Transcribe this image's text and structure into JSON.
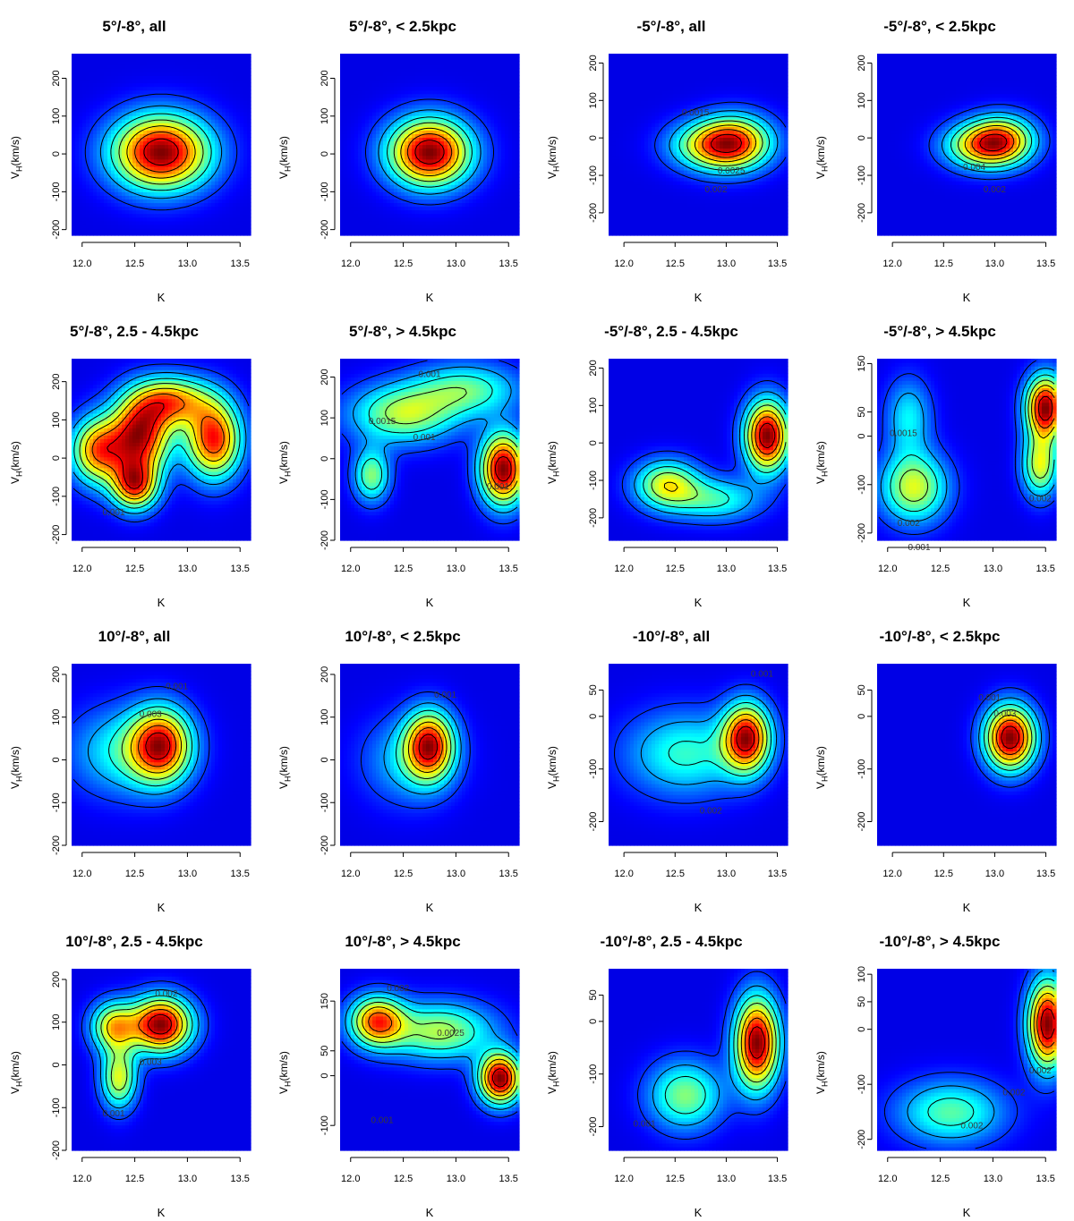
{
  "labels": {
    "xlabel": "K",
    "ylabel_main": "V",
    "ylabel_sub": "H",
    "ylabel_unit": "(km/s)"
  },
  "chart_data": [
    {
      "type": "heatmap",
      "title": "5°/-8°, all",
      "xlabel": "K",
      "ylabel": "VH(km/s)",
      "xlim": [
        11.9,
        13.6
      ],
      "ylim": [
        -215,
        265
      ],
      "xticks": [
        12.0,
        12.5,
        13.0,
        13.5
      ],
      "yticks": [
        -200,
        -100,
        0,
        100,
        200
      ],
      "peaks": [
        {
          "x": 12.75,
          "y": 5,
          "sx": 0.32,
          "sy": 68,
          "w": 1.0
        }
      ],
      "contour_labels": []
    },
    {
      "type": "heatmap",
      "title": "5°/-8°, < 2.5kpc",
      "xlabel": "K",
      "ylabel": "VH(km/s)",
      "xlim": [
        11.9,
        13.6
      ],
      "ylim": [
        -215,
        265
      ],
      "xticks": [
        12.0,
        12.5,
        13.0,
        13.5
      ],
      "yticks": [
        -200,
        -100,
        0,
        100,
        200
      ],
      "peaks": [
        {
          "x": 12.75,
          "y": 5,
          "sx": 0.27,
          "sy": 62,
          "w": 1.0
        }
      ],
      "contour_labels": []
    },
    {
      "type": "heatmap",
      "title": "-5°/-8°, all",
      "xlabel": "K",
      "ylabel": "VH(km/s)",
      "xlim": [
        11.85,
        13.6
      ],
      "ylim": [
        -260,
        225
      ],
      "xticks": [
        12.0,
        12.5,
        13.0,
        13.5
      ],
      "yticks": [
        -200,
        -100,
        0,
        100,
        200
      ],
      "peaks": [
        {
          "x": 12.85,
          "y": -20,
          "sx": 0.28,
          "sy": 45,
          "w": 0.85
        },
        {
          "x": 13.1,
          "y": -10,
          "sx": 0.25,
          "sy": 50,
          "w": 1.0
        }
      ],
      "contour_labels": [
        {
          "text": "0.0015",
          "x": 12.7,
          "y": 60
        },
        {
          "text": "0.0025",
          "x": 13.05,
          "y": -95
        },
        {
          "text": "0.002",
          "x": 12.9,
          "y": -145
        }
      ]
    },
    {
      "type": "heatmap",
      "title": "-5°/-8°, < 2.5kpc",
      "xlabel": "K",
      "ylabel": "VH(km/s)",
      "xlim": [
        11.85,
        13.6
      ],
      "ylim": [
        -260,
        225
      ],
      "xticks": [
        12.0,
        12.5,
        13.0,
        13.5
      ],
      "yticks": [
        -200,
        -100,
        0,
        100,
        200
      ],
      "peaks": [
        {
          "x": 12.85,
          "y": -20,
          "sx": 0.25,
          "sy": 42,
          "w": 0.9
        },
        {
          "x": 13.08,
          "y": -5,
          "sx": 0.22,
          "sy": 45,
          "w": 1.0
        }
      ],
      "contour_labels": [
        {
          "text": "0.004",
          "x": 12.8,
          "y": -85
        },
        {
          "text": "0.002",
          "x": 13.0,
          "y": -145
        }
      ]
    },
    {
      "type": "heatmap",
      "title": "5°/-8°, 2.5 - 4.5kpc",
      "xlabel": "K",
      "ylabel": "VH(km/s)",
      "xlim": [
        11.9,
        13.6
      ],
      "ylim": [
        -215,
        260
      ],
      "xticks": [
        12.0,
        12.5,
        13.0,
        13.5
      ],
      "yticks": [
        -200,
        -100,
        0,
        100,
        200
      ],
      "peaks": [
        {
          "x": 12.15,
          "y": 20,
          "sx": 0.18,
          "sy": 60,
          "w": 0.8
        },
        {
          "x": 12.55,
          "y": 60,
          "sx": 0.2,
          "sy": 70,
          "w": 1.0
        },
        {
          "x": 12.5,
          "y": -70,
          "sx": 0.15,
          "sy": 45,
          "w": 0.85
        },
        {
          "x": 12.85,
          "y": 150,
          "sx": 0.25,
          "sy": 45,
          "w": 0.75
        },
        {
          "x": 13.25,
          "y": 50,
          "sx": 0.18,
          "sy": 70,
          "w": 0.95
        }
      ],
      "contour_labels": [
        {
          "text": "0.001",
          "x": 12.3,
          "y": -150
        }
      ]
    },
    {
      "type": "heatmap",
      "title": "5°/-8°, > 4.5kpc",
      "xlabel": "K",
      "ylabel": "VH(km/s)",
      "xlim": [
        11.9,
        13.6
      ],
      "ylim": [
        -200,
        245
      ],
      "xticks": [
        12.0,
        12.5,
        13.0,
        13.5
      ],
      "yticks": [
        -200,
        -100,
        0,
        100,
        200
      ],
      "peaks": [
        {
          "x": 13.45,
          "y": -25,
          "sx": 0.15,
          "sy": 60,
          "w": 1.0
        },
        {
          "x": 12.5,
          "y": 110,
          "sx": 0.35,
          "sy": 50,
          "w": 0.5
        },
        {
          "x": 12.2,
          "y": -40,
          "sx": 0.12,
          "sy": 45,
          "w": 0.45
        },
        {
          "x": 13.1,
          "y": 170,
          "sx": 0.35,
          "sy": 45,
          "w": 0.4
        }
      ],
      "contour_labels": [
        {
          "text": "0.001",
          "x": 12.75,
          "y": 200
        },
        {
          "text": "0.0015",
          "x": 12.3,
          "y": 85
        },
        {
          "text": "0.001",
          "x": 12.7,
          "y": 45
        },
        {
          "text": "0.001",
          "x": 13.4,
          "y": -75
        }
      ]
    },
    {
      "type": "heatmap",
      "title": "-5°/-8°, 2.5 - 4.5kpc",
      "xlabel": "K",
      "ylabel": "VH(km/s)",
      "xlim": [
        11.85,
        13.6
      ],
      "ylim": [
        -260,
        225
      ],
      "xticks": [
        12.0,
        12.5,
        13.0,
        13.5
      ],
      "yticks": [
        -200,
        -100,
        0,
        100,
        200
      ],
      "peaks": [
        {
          "x": 13.4,
          "y": 20,
          "sx": 0.15,
          "sy": 65,
          "w": 1.0
        },
        {
          "x": 12.42,
          "y": -110,
          "sx": 0.22,
          "sy": 45,
          "w": 0.55
        },
        {
          "x": 12.9,
          "y": -150,
          "sx": 0.3,
          "sy": 40,
          "w": 0.35
        }
      ],
      "contour_labels": []
    },
    {
      "type": "heatmap",
      "title": "-5°/-8°, > 4.5kpc",
      "xlabel": "K",
      "ylabel": "VH(km/s)",
      "xlim": [
        11.9,
        13.6
      ],
      "ylim": [
        -215,
        160
      ],
      "xticks": [
        12.0,
        12.5,
        13.0,
        13.5
      ],
      "yticks": [
        -200,
        -100,
        0,
        50,
        150
      ],
      "peaks": [
        {
          "x": 13.5,
          "y": 60,
          "sx": 0.13,
          "sy": 45,
          "w": 1.0
        },
        {
          "x": 13.45,
          "y": -60,
          "sx": 0.12,
          "sy": 45,
          "w": 0.55
        },
        {
          "x": 12.25,
          "y": -105,
          "sx": 0.22,
          "sy": 50,
          "w": 0.55
        },
        {
          "x": 12.2,
          "y": 40,
          "sx": 0.15,
          "sy": 55,
          "w": 0.3
        }
      ],
      "contour_labels": [
        {
          "text": "0.0015",
          "x": 12.15,
          "y": 0
        },
        {
          "text": "0.002",
          "x": 12.2,
          "y": -185
        },
        {
          "text": "0.001",
          "x": 12.3,
          "y": -235
        },
        {
          "text": "0.002",
          "x": 13.45,
          "y": -135
        }
      ]
    },
    {
      "type": "heatmap",
      "title": "10°/-8°, all",
      "xlabel": "K",
      "ylabel": "VH(km/s)",
      "xlim": [
        11.9,
        13.6
      ],
      "ylim": [
        -200,
        225
      ],
      "xticks": [
        12.0,
        12.5,
        13.0,
        13.5
      ],
      "yticks": [
        -200,
        -100,
        0,
        100,
        200
      ],
      "peaks": [
        {
          "x": 12.75,
          "y": 35,
          "sx": 0.2,
          "sy": 60,
          "w": 1.0
        },
        {
          "x": 12.4,
          "y": 20,
          "sx": 0.35,
          "sy": 70,
          "w": 0.4
        }
      ],
      "contour_labels": [
        {
          "text": "0.001",
          "x": 12.9,
          "y": 165
        },
        {
          "text": "0.003",
          "x": 12.65,
          "y": 100
        }
      ]
    },
    {
      "type": "heatmap",
      "title": "10°/-8°, < 2.5kpc",
      "xlabel": "K",
      "ylabel": "VH(km/s)",
      "xlim": [
        11.9,
        13.6
      ],
      "ylim": [
        -200,
        225
      ],
      "xticks": [
        12.0,
        12.5,
        13.0,
        13.5
      ],
      "yticks": [
        -200,
        -100,
        0,
        100,
        200
      ],
      "peaks": [
        {
          "x": 12.75,
          "y": 35,
          "sx": 0.16,
          "sy": 55,
          "w": 1.0
        },
        {
          "x": 12.55,
          "y": 0,
          "sx": 0.3,
          "sy": 70,
          "w": 0.3
        }
      ],
      "contour_labels": [
        {
          "text": "0.001",
          "x": 12.9,
          "y": 145
        }
      ]
    },
    {
      "type": "heatmap",
      "title": "-10°/-8°, all",
      "xlabel": "K",
      "ylabel": "VH(km/s)",
      "xlim": [
        11.85,
        13.6
      ],
      "ylim": [
        -245,
        100
      ],
      "xticks": [
        12.0,
        12.5,
        13.0,
        13.5
      ],
      "yticks": [
        -200,
        -100,
        0,
        50
      ],
      "peaks": [
        {
          "x": 13.2,
          "y": -40,
          "sx": 0.16,
          "sy": 45,
          "w": 1.0
        },
        {
          "x": 12.6,
          "y": -70,
          "sx": 0.4,
          "sy": 55,
          "w": 0.4
        }
      ],
      "contour_labels": [
        {
          "text": "0.001",
          "x": 13.35,
          "y": 75
        },
        {
          "text": "0.002",
          "x": 12.85,
          "y": -185
        }
      ]
    },
    {
      "type": "heatmap",
      "title": "-10°/-8°, < 2.5kpc",
      "xlabel": "K",
      "ylabel": "VH(km/s)",
      "xlim": [
        11.85,
        13.6
      ],
      "ylim": [
        -245,
        100
      ],
      "xticks": [
        12.0,
        12.5,
        13.0,
        13.5
      ],
      "yticks": [
        -200,
        -100,
        0,
        50
      ],
      "peaks": [
        {
          "x": 13.15,
          "y": -40,
          "sx": 0.17,
          "sy": 42,
          "w": 1.0
        }
      ],
      "contour_labels": [
        {
          "text": "0.001",
          "x": 12.95,
          "y": 30
        },
        {
          "text": "0.003",
          "x": 13.1,
          "y": 0
        }
      ]
    },
    {
      "type": "heatmap",
      "title": "10°/-8°, 2.5 - 4.5kpc",
      "xlabel": "K",
      "ylabel": "VH(km/s)",
      "xlim": [
        11.9,
        13.6
      ],
      "ylim": [
        -200,
        225
      ],
      "xticks": [
        12.0,
        12.5,
        13.0,
        13.5
      ],
      "yticks": [
        -200,
        -100,
        0,
        100,
        200
      ],
      "peaks": [
        {
          "x": 12.75,
          "y": 95,
          "sx": 0.2,
          "sy": 45,
          "w": 1.0
        },
        {
          "x": 12.3,
          "y": 90,
          "sx": 0.15,
          "sy": 40,
          "w": 0.6
        },
        {
          "x": 12.35,
          "y": -30,
          "sx": 0.12,
          "sy": 50,
          "w": 0.55
        }
      ],
      "contour_labels": [
        {
          "text": "0.002",
          "x": 12.8,
          "y": 160
        },
        {
          "text": "0.003",
          "x": 12.65,
          "y": 0
        },
        {
          "text": "0.001",
          "x": 12.3,
          "y": -120
        }
      ]
    },
    {
      "type": "heatmap",
      "title": "10°/-8°, > 4.5kpc",
      "xlabel": "K",
      "ylabel": "VH(km/s)",
      "xlim": [
        11.9,
        13.6
      ],
      "ylim": [
        -150,
        215
      ],
      "xticks": [
        12.0,
        12.5,
        13.0,
        13.5
      ],
      "yticks": [
        -100,
        0,
        50,
        150
      ],
      "peaks": [
        {
          "x": 13.42,
          "y": -5,
          "sx": 0.14,
          "sy": 35,
          "w": 1.0
        },
        {
          "x": 12.25,
          "y": 110,
          "sx": 0.18,
          "sy": 35,
          "w": 0.75
        },
        {
          "x": 12.85,
          "y": 90,
          "sx": 0.35,
          "sy": 40,
          "w": 0.5
        }
      ],
      "contour_labels": [
        {
          "text": "0.002",
          "x": 12.45,
          "y": 170
        },
        {
          "text": "0.0025",
          "x": 12.95,
          "y": 80
        },
        {
          "text": "0.001",
          "x": 12.3,
          "y": -95
        }
      ]
    },
    {
      "type": "heatmap",
      "title": "-10°/-8°, 2.5 - 4.5kpc",
      "xlabel": "K",
      "ylabel": "VH(km/s)",
      "xlim": [
        11.85,
        13.6
      ],
      "ylim": [
        -245,
        100
      ],
      "xticks": [
        12.0,
        12.5,
        13.0,
        13.5
      ],
      "yticks": [
        -200,
        -100,
        0,
        50
      ],
      "peaks": [
        {
          "x": 13.3,
          "y": -40,
          "sx": 0.15,
          "sy": 60,
          "w": 1.0
        },
        {
          "x": 12.6,
          "y": -140,
          "sx": 0.25,
          "sy": 45,
          "w": 0.45
        }
      ],
      "contour_labels": [
        {
          "text": "0.001",
          "x": 12.2,
          "y": -200
        }
      ]
    },
    {
      "type": "heatmap",
      "title": "-10°/-8°, > 4.5kpc",
      "xlabel": "K",
      "ylabel": "VH(km/s)",
      "xlim": [
        11.9,
        13.6
      ],
      "ylim": [
        -220,
        110
      ],
      "xticks": [
        12.0,
        12.5,
        13.0,
        13.5
      ],
      "yticks": [
        -200,
        -100,
        0,
        50,
        100
      ],
      "peaks": [
        {
          "x": 13.52,
          "y": 10,
          "sx": 0.13,
          "sy": 55,
          "w": 1.0
        },
        {
          "x": 12.6,
          "y": -150,
          "sx": 0.35,
          "sy": 40,
          "w": 0.4
        }
      ],
      "contour_labels": [
        {
          "text": "0.002",
          "x": 12.8,
          "y": -180
        },
        {
          "text": "0.002",
          "x": 13.2,
          "y": -120
        },
        {
          "text": "0.002",
          "x": 13.45,
          "y": -80
        }
      ]
    }
  ]
}
